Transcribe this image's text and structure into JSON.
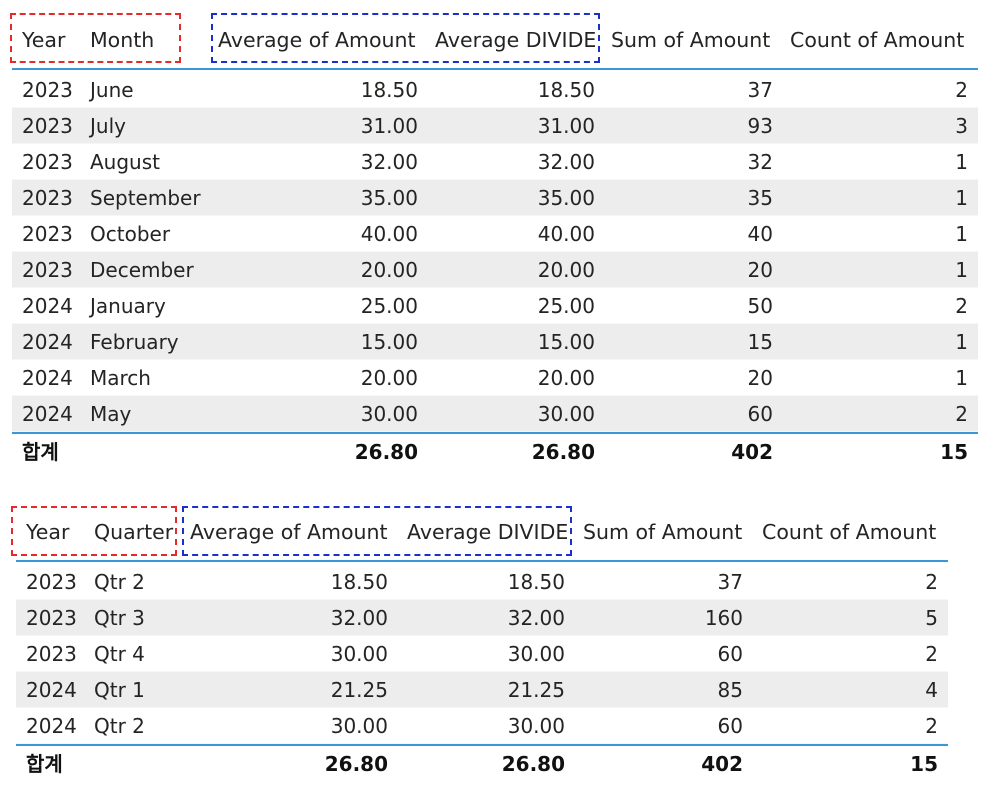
{
  "table1": {
    "headers": [
      "Year",
      "Month",
      "Average of Amount",
      "Average DIVIDE",
      "Sum of Amount",
      "Count of Amount"
    ],
    "rows": [
      [
        "2023",
        "June",
        "18.50",
        "18.50",
        "37",
        "2"
      ],
      [
        "2023",
        "July",
        "31.00",
        "31.00",
        "93",
        "3"
      ],
      [
        "2023",
        "August",
        "32.00",
        "32.00",
        "32",
        "1"
      ],
      [
        "2023",
        "September",
        "35.00",
        "35.00",
        "35",
        "1"
      ],
      [
        "2023",
        "October",
        "40.00",
        "40.00",
        "40",
        "1"
      ],
      [
        "2023",
        "December",
        "20.00",
        "20.00",
        "20",
        "1"
      ],
      [
        "2024",
        "January",
        "25.00",
        "25.00",
        "50",
        "2"
      ],
      [
        "2024",
        "February",
        "15.00",
        "15.00",
        "15",
        "1"
      ],
      [
        "2024",
        "March",
        "20.00",
        "20.00",
        "20",
        "1"
      ],
      [
        "2024",
        "May",
        "30.00",
        "30.00",
        "60",
        "2"
      ]
    ],
    "total": [
      "합계",
      "26.80",
      "26.80",
      "402",
      "15"
    ]
  },
  "table2": {
    "headers": [
      "Year",
      "Quarter",
      "Average of Amount",
      "Average DIVIDE",
      "Sum of Amount",
      "Count of Amount"
    ],
    "rows": [
      [
        "2023",
        "Qtr 2",
        "18.50",
        "18.50",
        "37",
        "2"
      ],
      [
        "2023",
        "Qtr 3",
        "32.00",
        "32.00",
        "160",
        "5"
      ],
      [
        "2023",
        "Qtr 4",
        "30.00",
        "30.00",
        "60",
        "2"
      ],
      [
        "2024",
        "Qtr 1",
        "21.25",
        "21.25",
        "85",
        "4"
      ],
      [
        "2024",
        "Qtr 2",
        "30.00",
        "30.00",
        "60",
        "2"
      ]
    ],
    "total": [
      "합계",
      "26.80",
      "26.80",
      "402",
      "15"
    ]
  },
  "colors": {
    "accent_line": "#3a97d8",
    "row_alt": "#ededed",
    "highlight_red": "#e32b2b",
    "highlight_blue": "#1d2fc9"
  }
}
